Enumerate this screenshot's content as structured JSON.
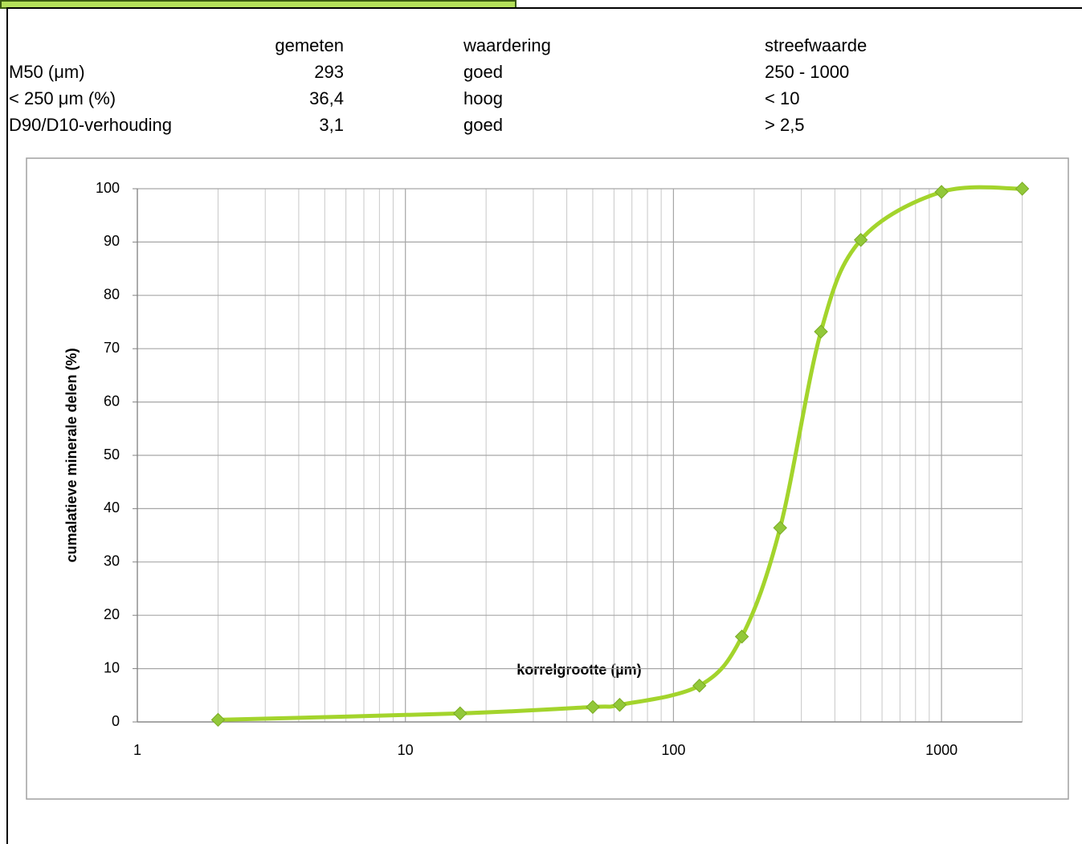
{
  "table": {
    "columns": [
      "gemeten",
      "waardering",
      "streefwaarde"
    ],
    "rows": [
      [
        "M50 (μm)",
        "293",
        "goed",
        "250 - 1000"
      ],
      [
        "< 250 μm (%)",
        "36,4",
        "hoog",
        "< 10"
      ],
      [
        "D90/D10-verhouding",
        "3,1",
        "goed",
        "> 2,5"
      ]
    ]
  },
  "chart_data": {
    "type": "line",
    "x_label": "korrelgrootte (µm)",
    "y_label": "cumalatieve minerale delen (%)",
    "x": [
      2,
      16,
      50,
      63,
      125,
      180,
      250,
      355,
      500,
      1000,
      2000
    ],
    "series": [
      {
        "color": "#a3d42c",
        "marker_color": "#92c83a",
        "smooth": true,
        "values": [
          0.4,
          1.6,
          2.8,
          3.2,
          6.8,
          16,
          36.4,
          73.2,
          90.4,
          99.4,
          100
        ]
      }
    ],
    "xlim": [
      1,
      2000
    ],
    "xticks": [
      1,
      10,
      100,
      1000
    ],
    "xlog": true,
    "minor_grid": true,
    "ylim": [
      0,
      100
    ],
    "yticks": [
      0,
      10,
      20,
      30,
      40,
      50,
      60,
      70,
      80,
      90,
      100
    ],
    "grid": true
  }
}
